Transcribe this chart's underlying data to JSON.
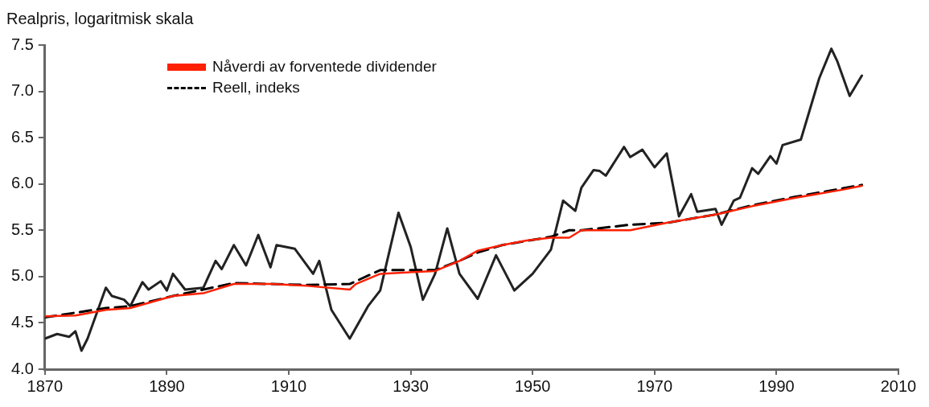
{
  "chart_data": {
    "type": "line",
    "ylabel": "Realpris, logaritmisk skala",
    "xlim": [
      1870,
      2010
    ],
    "xticks": [
      1870,
      1890,
      1910,
      1930,
      1950,
      1970,
      1990,
      2010
    ],
    "ylim": [
      4,
      7.5
    ],
    "yticks": [
      {
        "value": 4,
        "label": "4.0"
      },
      {
        "value": 4.5,
        "label": "4.5"
      },
      {
        "value": 5,
        "label": "5.0"
      },
      {
        "value": 5.5,
        "label": "5.5"
      },
      {
        "value": 6,
        "label": "6.0"
      },
      {
        "value": 6.5,
        "label": "6.5"
      },
      {
        "value": 7,
        "label": "7.0"
      },
      {
        "value": 7.5,
        "label": "7.5"
      }
    ],
    "grid": false,
    "legend": "top left",
    "marker": "none",
    "series": [
      {
        "name": "Nåverdi av forventede dividender",
        "color": "#ff2000",
        "line_style": "solid",
        "x": [
          1870,
          1875,
          1880,
          1884,
          1891,
          1896,
          1901,
          1907,
          1913,
          1920,
          1921,
          1925,
          1934,
          1938,
          1941,
          1945,
          1949,
          1953,
          1956,
          1958,
          1966,
          1972,
          1980,
          1986,
          1993,
          2001,
          2004
        ],
        "values": [
          4.57,
          4.58,
          4.64,
          4.66,
          4.79,
          4.82,
          4.92,
          4.92,
          4.9,
          4.86,
          4.92,
          5.03,
          5.06,
          5.17,
          5.28,
          5.34,
          5.39,
          5.42,
          5.42,
          5.5,
          5.5,
          5.58,
          5.67,
          5.76,
          5.85,
          5.94,
          5.98
        ]
      },
      {
        "name": "Reell, indeks",
        "color": "#000000",
        "line_style": "dashed",
        "x": [
          1870,
          1880,
          1884,
          1891,
          1901,
          1913,
          1920,
          1925,
          1934,
          1938,
          1941,
          1945,
          1953,
          1956,
          1958,
          1966,
          1972,
          1980,
          1986,
          1993,
          2004
        ],
        "values": [
          4.56,
          4.66,
          4.68,
          4.79,
          4.93,
          4.91,
          4.92,
          5.07,
          5.07,
          5.17,
          5.26,
          5.34,
          5.43,
          5.5,
          5.5,
          5.56,
          5.58,
          5.67,
          5.77,
          5.86,
          5.99
        ]
      },
      {
        "color": "#222222",
        "line_style": "solid",
        "x": [
          1870,
          1872,
          1874,
          1875,
          1876,
          1877,
          1880,
          1881,
          1883,
          1884,
          1886,
          1887,
          1889,
          1890,
          1891,
          1893,
          1896,
          1898,
          1899,
          1901,
          1903,
          1905,
          1907,
          1908,
          1911,
          1914,
          1915,
          1917,
          1920,
          1923,
          1925,
          1928,
          1930,
          1932,
          1934,
          1936,
          1938,
          1941,
          1944,
          1947,
          1950,
          1953,
          1955,
          1957,
          1958,
          1960,
          1961,
          1962,
          1965,
          1966,
          1968,
          1970,
          1972,
          1974,
          1976,
          1977,
          1980,
          1981,
          1983,
          1984,
          1986,
          1987,
          1989,
          1990,
          1991,
          1994,
          1997,
          1999,
          2000,
          2002,
          2004
        ],
        "values": [
          4.33,
          4.38,
          4.35,
          4.41,
          4.2,
          4.33,
          4.88,
          4.79,
          4.75,
          4.68,
          4.94,
          4.86,
          4.95,
          4.85,
          5.03,
          4.86,
          4.88,
          5.17,
          5.08,
          5.34,
          5.12,
          5.45,
          5.1,
          5.34,
          5.3,
          5.03,
          5.17,
          4.64,
          4.33,
          4.68,
          4.85,
          5.69,
          5.32,
          4.75,
          5.03,
          5.52,
          5.03,
          4.76,
          5.23,
          4.85,
          5.03,
          5.29,
          5.82,
          5.71,
          5.96,
          6.15,
          6.14,
          6.09,
          6.4,
          6.29,
          6.37,
          6.18,
          6.33,
          5.65,
          5.89,
          5.7,
          5.73,
          5.56,
          5.82,
          5.85,
          6.17,
          6.11,
          6.3,
          6.22,
          6.42,
          6.48,
          7.14,
          7.46,
          7.32,
          6.95,
          7.17
        ]
      }
    ]
  }
}
